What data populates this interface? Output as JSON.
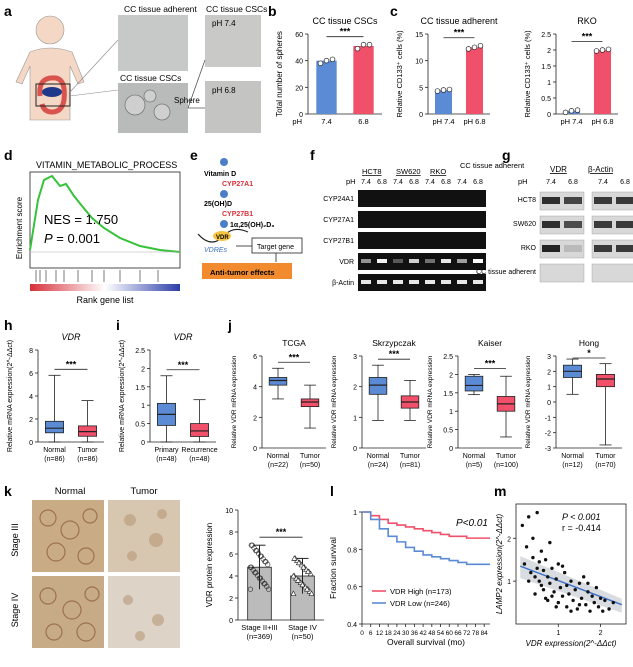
{
  "panels": {
    "a": {
      "letter": "a",
      "labels": {
        "adherent": "CC tissue adherent",
        "cscs_top": "CC tissue CSCs",
        "cscs": "CC tissue CSCs",
        "sphere": "Sphere",
        "ph74": "pH 7.4",
        "ph68": "pH 6.8"
      }
    },
    "b": {
      "letter": "b"
    },
    "c": {
      "letter": "c"
    },
    "d": {
      "letter": "d",
      "title": "VITAMIN_METABOLIC_PROCESS",
      "ylabel": "Enrichment score",
      "xlabel": "Rank gene list",
      "nes": "NES = 1.750",
      "p_label": "P",
      "p_value": " = 0.001"
    },
    "e": {
      "letter": "e",
      "nodes": [
        "Vitamin D",
        "CYP27A1",
        "25(OH)D",
        "CYP27B1",
        "1α,25(OH)₂D₃",
        "VDR",
        "VDREs",
        "Target gene",
        "Anti-tumor effects"
      ]
    },
    "f": {
      "letter": "f",
      "cells": [
        "HCT8",
        "SW620",
        "RKO",
        "CC tissue adherent"
      ],
      "ph_label": "pH",
      "ph_vals": [
        "7.4",
        "6.8"
      ],
      "genes": [
        "CYP24A1",
        "CYP27A1",
        "CYP27B1",
        "VDR",
        "β-Actin"
      ]
    },
    "g": {
      "letter": "g",
      "cols": [
        "VDR",
        "β-Actin"
      ],
      "ph_label": "pH",
      "ph_vals": [
        "7.4",
        "6.8"
      ],
      "rows": [
        "HCT8",
        "SW620",
        "RKO",
        "CC tissue adherent"
      ]
    },
    "h": {
      "letter": "h"
    },
    "i": {
      "letter": "i"
    },
    "j": {
      "letter": "j"
    },
    "k": {
      "letter": "k",
      "col_normal": "Normal",
      "col_tumor": "Tumor",
      "row1": "Stage III",
      "row2": "Stage IV"
    },
    "l": {
      "letter": "l"
    },
    "m": {
      "letter": "m",
      "stats1": "P < 0.001",
      "stats2": "r = -0.414"
    }
  },
  "chart_data": [
    {
      "id": "b",
      "type": "bar",
      "title": "CC tissue CSCs",
      "ylabel": "Total number of spheres",
      "xlabel": "pH",
      "categories": [
        "7.4",
        "6.8"
      ],
      "values": [
        40,
        51
      ],
      "points": [
        [
          38,
          40,
          41
        ],
        [
          49,
          52,
          52
        ]
      ],
      "ylim": [
        0,
        60
      ],
      "yticks": [
        0,
        20,
        40,
        60
      ],
      "significance": "***",
      "colors": [
        "#5b8bd4",
        "#f0506a"
      ]
    },
    {
      "id": "c1",
      "type": "bar",
      "title": "CC tissue adherent",
      "ylabel": "Relative CD133⁺ cells (%)",
      "categories": [
        "pH 7.4",
        "pH 6.8"
      ],
      "values": [
        4.5,
        12.5
      ],
      "points": [
        [
          4.3,
          4.5,
          4.6
        ],
        [
          12.2,
          12.5,
          12.8
        ]
      ],
      "ylim": [
        0,
        15
      ],
      "yticks": [
        0,
        5,
        10,
        15
      ],
      "significance": "***",
      "colors": [
        "#5b8bd4",
        "#f0506a"
      ]
    },
    {
      "id": "c2",
      "type": "bar",
      "title": "RKO",
      "ylabel": "Relative CD133⁺ cells (%)",
      "categories": [
        "pH 7.4",
        "pH 6.8"
      ],
      "values": [
        0.1,
        2.0
      ],
      "points": [
        [
          0.05,
          0.1,
          0.12
        ],
        [
          1.97,
          2.0,
          2.02
        ]
      ],
      "ylim": [
        0,
        2.5
      ],
      "yticks": [
        0,
        0.5,
        1.0,
        1.5,
        2.0,
        2.5
      ],
      "significance": "***",
      "colors": [
        "#5b8bd4",
        "#f0506a"
      ]
    },
    {
      "id": "h",
      "type": "box",
      "title": "VDR",
      "ylabel": "Relative mRNA expression(2^-ΔΔct)",
      "categories": [
        "Normal",
        "Tumor"
      ],
      "n_labels": [
        "(n=86)",
        "(n=86)"
      ],
      "boxes": [
        {
          "min": 0,
          "q1": 0.8,
          "median": 1.2,
          "q3": 1.8,
          "max": 5.8
        },
        {
          "min": 0,
          "q1": 0.5,
          "median": 0.9,
          "q3": 1.4,
          "max": 3.6
        }
      ],
      "ylim": [
        0,
        8
      ],
      "yticks": [
        0,
        2,
        4,
        6,
        8
      ],
      "significance": "***",
      "colors": [
        "#5b8bd4",
        "#f0506a"
      ]
    },
    {
      "id": "i",
      "type": "box",
      "title": "VDR",
      "ylabel": "Relative mRNA expression(2^-ΔΔct)",
      "categories": [
        "Primary",
        "Recurrence"
      ],
      "n_labels": [
        "(n=48)",
        "(n=48)"
      ],
      "boxes": [
        {
          "min": 0,
          "q1": 0.45,
          "median": 0.75,
          "q3": 1.05,
          "max": 1.8
        },
        {
          "min": 0,
          "q1": 0.15,
          "median": 0.3,
          "q3": 0.5,
          "max": 1.15
        }
      ],
      "ylim": [
        0,
        2.5
      ],
      "yticks": [
        0,
        0.5,
        1.0,
        1.5,
        2.0,
        2.5
      ],
      "significance": "***",
      "colors": [
        "#5b8bd4",
        "#f0506a"
      ]
    },
    {
      "id": "j1",
      "type": "box",
      "title": "TCGA",
      "ylabel": "Relative VDR mRNA expression",
      "categories": [
        "Normal",
        "Tumor"
      ],
      "n_labels": [
        "(n=22)",
        "(n=50)"
      ],
      "boxes": [
        {
          "min": 3.2,
          "q1": 4.1,
          "median": 4.4,
          "q3": 4.6,
          "max": 5.2
        },
        {
          "min": 1.3,
          "q1": 2.7,
          "median": 3.0,
          "q3": 3.2,
          "max": 4.1
        }
      ],
      "ylim": [
        0,
        6
      ],
      "yticks": [
        0,
        2,
        4,
        6
      ],
      "significance": "***",
      "colors": [
        "#5b8bd4",
        "#f0506a"
      ]
    },
    {
      "id": "j2",
      "type": "box",
      "title": "Skrzypczak",
      "ylabel": "Relative VDR mRNA expression",
      "categories": [
        "Normal",
        "Tumor"
      ],
      "n_labels": [
        "(n=24)",
        "(n=81)"
      ],
      "boxes": [
        {
          "min": 0.9,
          "q1": 1.75,
          "median": 2.05,
          "q3": 2.3,
          "max": 2.7
        },
        {
          "min": 0.9,
          "q1": 1.3,
          "median": 1.5,
          "q3": 1.7,
          "max": 2.2
        }
      ],
      "ylim": [
        0,
        3
      ],
      "yticks": [
        0,
        1,
        2,
        3
      ],
      "significance": "***",
      "colors": [
        "#5b8bd4",
        "#f0506a"
      ]
    },
    {
      "id": "j3",
      "type": "box",
      "title": "Kaiser",
      "ylabel": "Relative VDR mRNA expression",
      "categories": [
        "Normal",
        "Tumor"
      ],
      "n_labels": [
        "(n=5)",
        "(n=100)"
      ],
      "boxes": [
        {
          "min": 1.45,
          "q1": 1.55,
          "median": 1.7,
          "q3": 1.95,
          "max": 2.0
        },
        {
          "min": 0.3,
          "q1": 1.0,
          "median": 1.2,
          "q3": 1.4,
          "max": 1.95
        }
      ],
      "ylim": [
        0,
        2.5
      ],
      "yticks": [
        0,
        0.5,
        1.0,
        1.5,
        2.0,
        2.5
      ],
      "significance": "***",
      "colors": [
        "#5b8bd4",
        "#f0506a"
      ]
    },
    {
      "id": "j4",
      "type": "box",
      "title": "Hong",
      "ylabel": "Relative VDR mRNA expression",
      "categories": [
        "Normal",
        "Tumor"
      ],
      "n_labels": [
        "(n=12)",
        "(n=70)"
      ],
      "boxes": [
        {
          "min": 0.5,
          "q1": 1.6,
          "median": 2.0,
          "q3": 2.4,
          "max": 2.8
        },
        {
          "min": -2.8,
          "q1": 1.0,
          "median": 1.5,
          "q3": 1.8,
          "max": 2.5
        }
      ],
      "ylim": [
        -3,
        3
      ],
      "yticks": [
        -3,
        -2,
        -1,
        0,
        1,
        2,
        3
      ],
      "significance": "*",
      "colors": [
        "#5b8bd4",
        "#f0506a"
      ]
    },
    {
      "id": "k",
      "type": "bar",
      "ylabel": "VDR protein expression",
      "categories": [
        "Stage II+III",
        "Stage IV"
      ],
      "n_labels": [
        "(n=369)",
        "(n=50)"
      ],
      "values": [
        4.8,
        4.0
      ],
      "sd": [
        2.0,
        1.6
      ],
      "ylim": [
        0,
        10
      ],
      "yticks": [
        0,
        2,
        4,
        6,
        8,
        10
      ],
      "significance": "***",
      "colors": [
        "#bbbbbb",
        "#bbbbbb"
      ]
    },
    {
      "id": "l",
      "type": "line",
      "ylabel": "Fraction survival",
      "xlabel": "Overall survival (mo)",
      "annotation": "P<0.01",
      "xticks": [
        0,
        6,
        12,
        18,
        24,
        30,
        36,
        42,
        48,
        54,
        60,
        66,
        72,
        78,
        84
      ],
      "ylim": [
        0.4,
        1.0
      ],
      "yticks": [
        0.4,
        0.6,
        0.8,
        1.0
      ],
      "series": [
        {
          "name": "VDR High (n=173)",
          "color": "#f0506a",
          "x": [
            0,
            6,
            12,
            18,
            24,
            30,
            36,
            42,
            48,
            54,
            60,
            66,
            72,
            78,
            84,
            88
          ],
          "y": [
            1.0,
            0.98,
            0.96,
            0.94,
            0.93,
            0.92,
            0.91,
            0.9,
            0.89,
            0.88,
            0.87,
            0.87,
            0.86,
            0.86,
            0.86,
            0.86
          ]
        },
        {
          "name": "VDR Low (n=246)",
          "color": "#5b8bd4",
          "x": [
            0,
            6,
            12,
            18,
            24,
            30,
            36,
            42,
            48,
            54,
            60,
            66,
            72,
            78,
            84,
            88
          ],
          "y": [
            1.0,
            0.96,
            0.91,
            0.87,
            0.84,
            0.81,
            0.79,
            0.77,
            0.76,
            0.75,
            0.74,
            0.73,
            0.72,
            0.72,
            0.72,
            0.72
          ]
        }
      ]
    },
    {
      "id": "m",
      "type": "scatter",
      "xlabel": "VDR expression(2^-ΔΔct)",
      "ylabel": "LAMP2 expression(2^-ΔΔct)",
      "xticks": [
        1,
        2
      ],
      "yticks": [
        1,
        2
      ],
      "xlim": [
        0,
        2.6
      ],
      "ylim": [
        0,
        2.8
      ],
      "fit": {
        "x0": 0.1,
        "y0": 1.35,
        "x1": 2.5,
        "y1": 0.45
      },
      "points": [
        [
          0.15,
          2.3
        ],
        [
          0.2,
          1.4
        ],
        [
          0.25,
          1.8
        ],
        [
          0.3,
          1.0
        ],
        [
          0.3,
          2.5
        ],
        [
          0.35,
          1.2
        ],
        [
          0.4,
          2.0
        ],
        [
          0.4,
          1.55
        ],
        [
          0.45,
          0.7
        ],
        [
          0.5,
          1.3
        ],
        [
          0.5,
          2.6
        ],
        [
          0.55,
          1.0
        ],
        [
          0.6,
          1.7
        ],
        [
          0.6,
          0.9
        ],
        [
          0.65,
          1.25
        ],
        [
          0.7,
          1.5
        ],
        [
          0.7,
          0.6
        ],
        [
          0.75,
          1.1
        ],
        [
          0.8,
          0.95
        ],
        [
          0.8,
          1.9
        ],
        [
          0.85,
          1.3
        ],
        [
          0.9,
          0.75
        ],
        [
          0.95,
          1.05
        ],
        [
          1.0,
          0.5
        ],
        [
          1.0,
          1.4
        ],
        [
          1.05,
          0.85
        ],
        [
          1.1,
          0.65
        ],
        [
          1.15,
          1.2
        ],
        [
          1.2,
          0.9
        ],
        [
          1.2,
          0.4
        ],
        [
          1.25,
          0.7
        ],
        [
          1.3,
          1.0
        ],
        [
          1.35,
          0.55
        ],
        [
          1.4,
          0.8
        ],
        [
          1.45,
          0.35
        ],
        [
          1.5,
          0.95
        ],
        [
          1.55,
          0.6
        ],
        [
          1.6,
          1.1
        ],
        [
          1.65,
          0.45
        ],
        [
          1.7,
          0.75
        ],
        [
          1.75,
          0.3
        ],
        [
          1.8,
          0.65
        ],
        [
          1.85,
          0.5
        ],
        [
          1.9,
          0.85
        ],
        [
          1.95,
          0.4
        ],
        [
          2.0,
          0.6
        ],
        [
          2.05,
          0.3
        ],
        [
          2.1,
          0.55
        ],
        [
          2.2,
          0.35
        ],
        [
          2.3,
          0.5
        ],
        [
          0.45,
          1.1
        ],
        [
          0.55,
          1.45
        ],
        [
          0.65,
          0.8
        ],
        [
          0.75,
          0.55
        ],
        [
          0.85,
          0.65
        ],
        [
          0.95,
          0.4
        ],
        [
          1.1,
          1.35
        ],
        [
          1.3,
          0.3
        ],
        [
          1.5,
          0.45
        ],
        [
          1.7,
          0.95
        ]
      ]
    }
  ]
}
